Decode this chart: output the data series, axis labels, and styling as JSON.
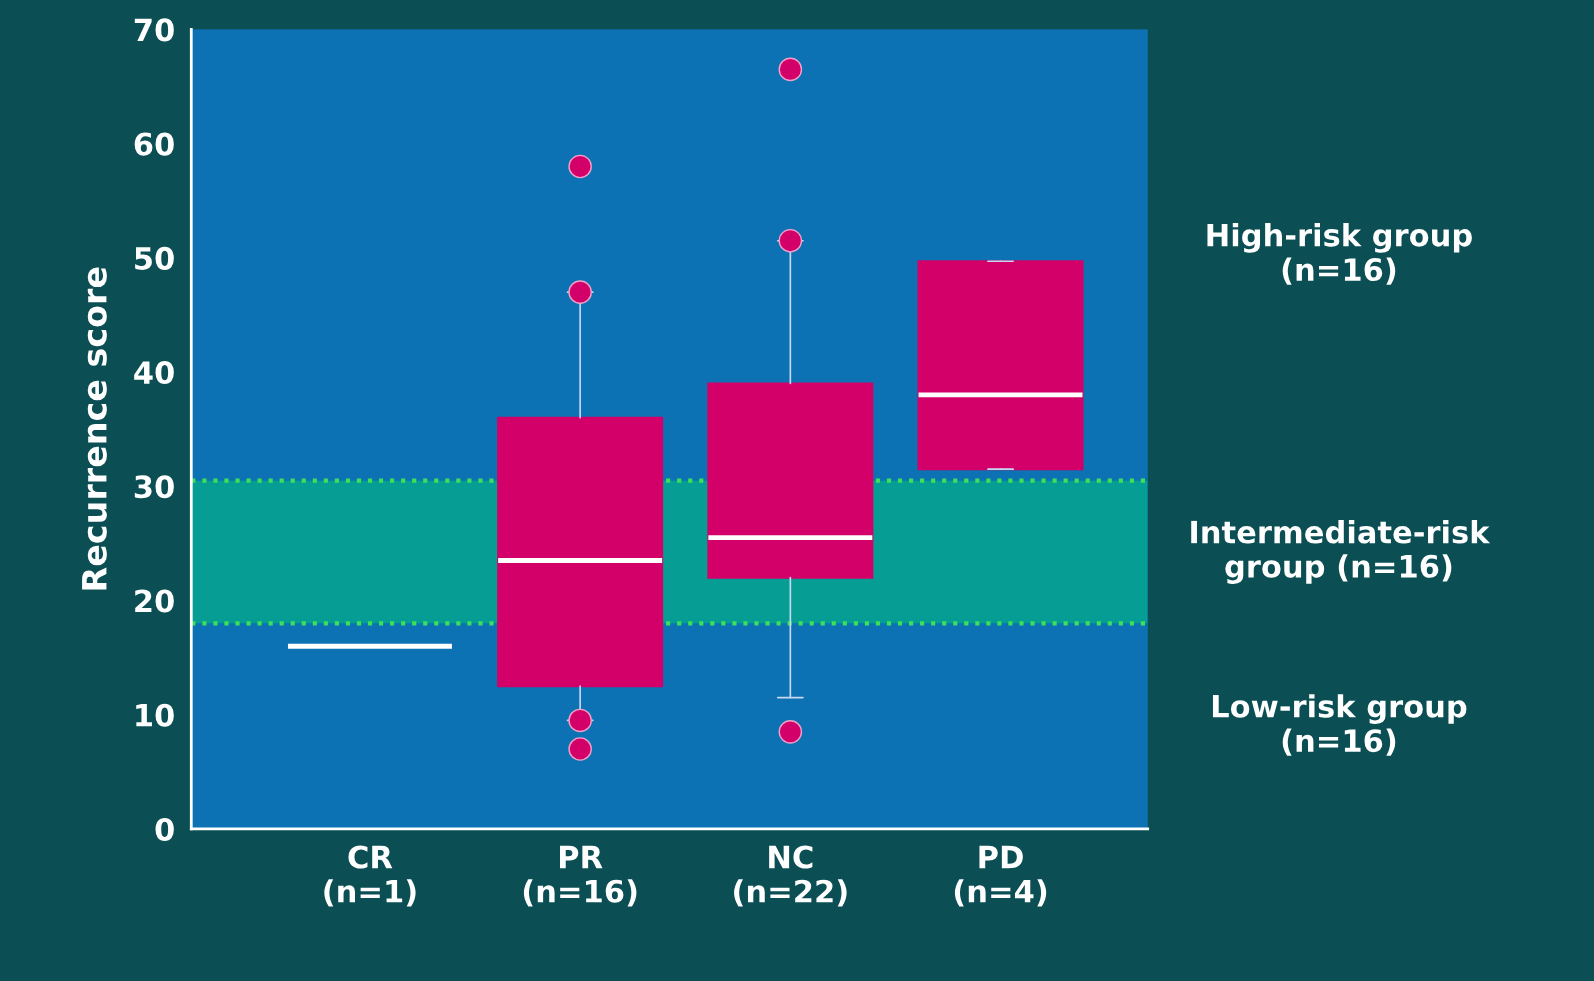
{
  "chart_data": {
    "type": "box",
    "ylabel": "Recurrence score",
    "categories": [
      "CR\n(n=1)",
      "PR\n(n=16)",
      "NC\n(n=22)",
      "PD\n(n=4)"
    ],
    "color": "#d4006a",
    "boxes": [
      {
        "low": 16,
        "q1": 16,
        "median": 16,
        "q3": 16,
        "high": 16
      },
      {
        "low": 9.5,
        "q1": 12.5,
        "median": 23.5,
        "q3": 36,
        "high": 47,
        "outliers": [
          58,
          47,
          9.5,
          7
        ]
      },
      {
        "low": 11.5,
        "q1": 22,
        "median": 25.5,
        "q3": 39,
        "high": 51.5,
        "outliers": [
          66.5,
          51.5,
          8.5
        ]
      },
      {
        "low": 31.5,
        "q1": 31.5,
        "median": 38,
        "q3": 49.7,
        "high": 49.7
      }
    ],
    "ylim": [
      0,
      70
    ],
    "yticks": [
      0,
      10,
      20,
      30,
      40,
      50,
      60,
      70
    ],
    "grid": false,
    "bands": [
      {
        "axis": "y",
        "from": 0,
        "to": 18,
        "label": "Low-risk group\n(n=16)",
        "color": "#0d72b4"
      },
      {
        "axis": "y",
        "from": 18,
        "to": 30.5,
        "label": "Intermediate-risk\ngroup (n=16)",
        "color": "#069e94"
      },
      {
        "axis": "y",
        "from": 30.5,
        "to": 70,
        "label": "High-risk group\n(n=16)",
        "color": "#0d72b4"
      }
    ],
    "ref_lines": [
      {
        "axis": "y",
        "value": 18,
        "color": "#3ee05a",
        "line_style": "dotted"
      },
      {
        "axis": "y",
        "value": 30.5,
        "color": "#3ee05a",
        "line_style": "dotted"
      }
    ]
  }
}
